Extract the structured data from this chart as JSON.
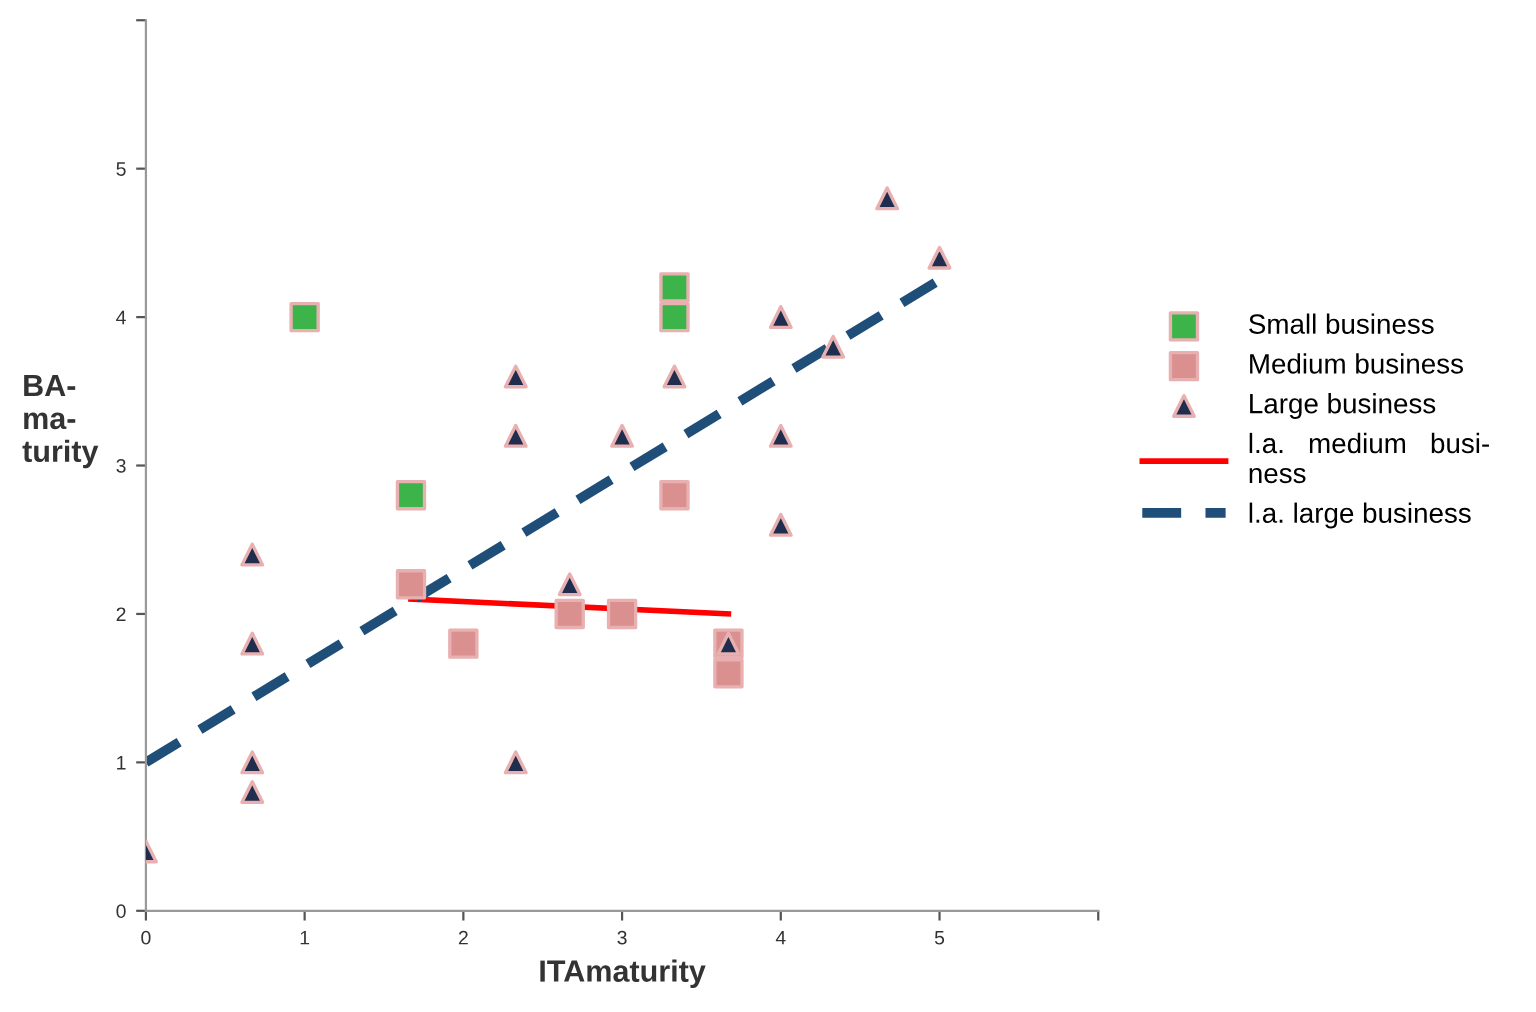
{
  "chart_data": {
    "type": "scatter",
    "xlabel": "ITAmaturity",
    "ylabel": "BA-\nma-\nturity",
    "xlim": [
      0,
      6
    ],
    "ylim": [
      0,
      6
    ],
    "xticks": [
      0,
      1,
      2,
      3,
      4,
      5,
      {
        "value": 6,
        "label": null
      }
    ],
    "yticks": [
      0,
      1,
      2,
      3,
      4,
      5,
      {
        "value": 6,
        "label": null
      }
    ],
    "grid": false,
    "legend": "right",
    "series": [
      {
        "name": "Small business",
        "marker": "square",
        "color": "#3cb44a",
        "x": [
          1,
          1.67,
          3.33,
          3.33
        ],
        "values": [
          4.0,
          2.8,
          4.2,
          4.0
        ]
      },
      {
        "name": "Medium business",
        "marker": "square",
        "color": "#d9908f",
        "x": [
          1.67,
          2,
          2.67,
          3,
          3.33,
          3.67,
          3.67
        ],
        "values": [
          2.2,
          1.8,
          2.0,
          2.0,
          2.8,
          1.8,
          1.6
        ]
      },
      {
        "name": "Large business",
        "marker": "triangle",
        "color": "#1f2d4e",
        "x": [
          0,
          0.67,
          0.67,
          0.67,
          0.67,
          2.33,
          2.33,
          2.33,
          2.67,
          3,
          3.33,
          3.67,
          4,
          4,
          4,
          4.33,
          4.67,
          5
        ],
        "values": [
          0.4,
          2.4,
          1.8,
          1.0,
          0.8,
          3.6,
          3.2,
          1.0,
          2.2,
          3.2,
          3.6,
          1.8,
          4.0,
          3.2,
          2.6,
          3.8,
          4.8,
          4.4
        ]
      },
      {
        "name": "l.a.   medium   busi-\nness",
        "type": "line",
        "line_style": "solid",
        "marker": "none",
        "color": "#ff0000",
        "x": [
          1.67,
          3.67
        ],
        "values": [
          2.1,
          2.0
        ]
      },
      {
        "name": "l.a. large business",
        "type": "line",
        "line_style": "dashed",
        "marker": "none",
        "color": "#1f4e79",
        "x": [
          0,
          5
        ],
        "values": [
          1.0,
          4.25
        ]
      }
    ]
  }
}
